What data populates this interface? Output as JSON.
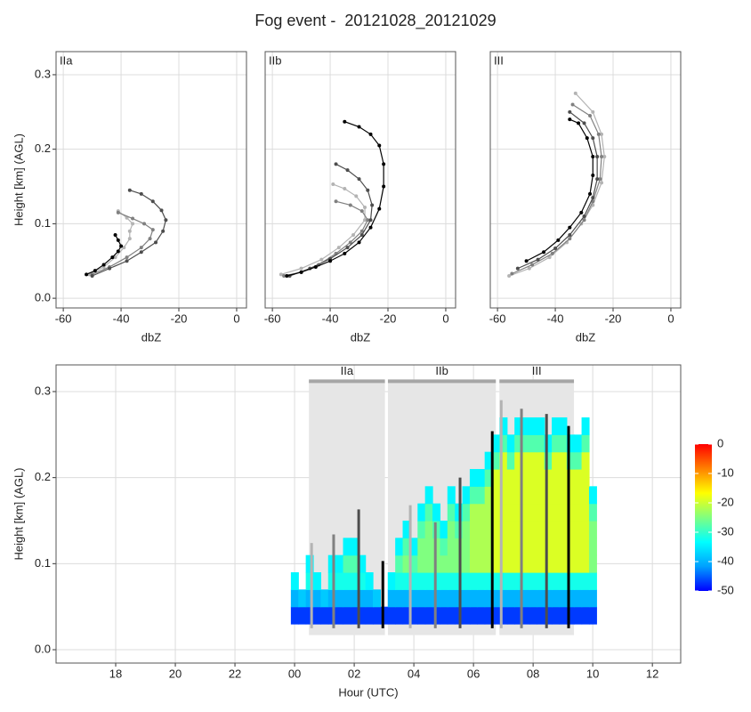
{
  "title": "Fog event -  20121028_20121029",
  "chart_data": [
    {
      "type": "line",
      "xlabel": "dbZ",
      "ylabel": "Height [km] (AGL)",
      "xlim": [
        -62.5,
        3.4
      ],
      "ylim": [
        -0.013,
        0.331
      ],
      "xticks": [
        -60,
        -40,
        -20,
        0
      ],
      "yticks": [
        {
          "value": 0,
          "label": "0.0"
        },
        0.1,
        0.2,
        0.3
      ],
      "grid": true,
      "facets": [
        {
          "label": "IIa",
          "series": [
            {
              "color": "#b3b3b3",
              "x": [
                -51,
                -46,
                -42,
                -39,
                -37,
                -37,
                -36,
                -38,
                -41
              ],
              "values": [
                0.032,
                0.042,
                0.055,
                0.068,
                0.08,
                0.09,
                0.1,
                0.108,
                0.117
              ]
            },
            {
              "color": "#808080",
              "x": [
                -50,
                -44,
                -38,
                -33,
                -30,
                -29,
                -32,
                -36,
                -41
              ],
              "values": [
                0.032,
                0.042,
                0.055,
                0.068,
                0.08,
                0.092,
                0.1,
                0.107,
                0.115
              ]
            },
            {
              "color": "#4d4d4d",
              "x": [
                -50,
                -44,
                -38,
                -33,
                -28,
                -25.5,
                -24.5,
                -26,
                -29,
                -33,
                -37
              ],
              "values": [
                0.03,
                0.04,
                0.05,
                0.062,
                0.075,
                0.09,
                0.105,
                0.118,
                0.13,
                0.14,
                0.145
              ]
            },
            {
              "color": "#000000",
              "x": [
                -52,
                -49,
                -46,
                -43,
                -41,
                -40,
                -41,
                -42
              ],
              "values": [
                0.032,
                0.037,
                0.045,
                0.055,
                0.063,
                0.07,
                0.078,
                0.085
              ]
            }
          ]
        },
        {
          "label": "IIb",
          "series": [
            {
              "color": "#b3b3b3",
              "x": [
                -57,
                -50,
                -43,
                -37,
                -32,
                -28,
                -28,
                -31,
                -35,
                -39
              ],
              "values": [
                0.032,
                0.04,
                0.052,
                0.068,
                0.085,
                0.105,
                0.122,
                0.137,
                0.147,
                0.153
              ]
            },
            {
              "color": "#808080",
              "x": [
                -56,
                -50,
                -44,
                -38,
                -33,
                -29,
                -27,
                -29,
                -33,
                -38
              ],
              "values": [
                0.03,
                0.035,
                0.045,
                0.06,
                0.075,
                0.09,
                0.105,
                0.117,
                0.125,
                0.13
              ]
            },
            {
              "color": "#4d4d4d",
              "x": [
                -54,
                -47,
                -40,
                -34,
                -29,
                -26,
                -25.5,
                -27,
                -30,
                -34,
                -38
              ],
              "values": [
                0.03,
                0.04,
                0.053,
                0.068,
                0.085,
                0.105,
                0.125,
                0.145,
                0.16,
                0.172,
                0.18
              ]
            },
            {
              "color": "#000000",
              "x": [
                -55,
                -50,
                -45,
                -40,
                -35,
                -30,
                -26,
                -23,
                -21.5,
                -21.5,
                -23,
                -26,
                -30,
                -35
              ],
              "values": [
                0.03,
                0.035,
                0.042,
                0.05,
                0.06,
                0.075,
                0.095,
                0.12,
                0.15,
                0.18,
                0.205,
                0.22,
                0.23,
                0.237
              ]
            }
          ]
        },
        {
          "label": "III",
          "series": [
            {
              "color": "#b3b3b3",
              "x": [
                -56,
                -49,
                -42,
                -36,
                -31,
                -27,
                -24,
                -23,
                -24,
                -27,
                -33
              ],
              "values": [
                0.03,
                0.04,
                0.055,
                0.075,
                0.1,
                0.125,
                0.155,
                0.19,
                0.22,
                0.25,
                0.275
              ]
            },
            {
              "color": "#808080",
              "x": [
                -55,
                -48,
                -41,
                -35,
                -30,
                -27,
                -24.5,
                -24,
                -25,
                -28,
                -34
              ],
              "values": [
                0.033,
                0.045,
                0.06,
                0.08,
                0.105,
                0.13,
                0.16,
                0.19,
                0.22,
                0.245,
                0.26
              ]
            },
            {
              "color": "#4d4d4d",
              "x": [
                -53,
                -46,
                -40,
                -35,
                -30,
                -27,
                -25.5,
                -25.5,
                -27,
                -30,
                -35
              ],
              "values": [
                0.04,
                0.052,
                0.067,
                0.085,
                0.11,
                0.135,
                0.16,
                0.19,
                0.215,
                0.235,
                0.25
              ]
            },
            {
              "color": "#000000",
              "x": [
                -50,
                -44,
                -39,
                -35,
                -31,
                -28,
                -27,
                -27,
                -29,
                -32,
                -35
              ],
              "values": [
                0.05,
                0.062,
                0.078,
                0.095,
                0.115,
                0.14,
                0.165,
                0.19,
                0.215,
                0.235,
                0.24
              ]
            }
          ]
        }
      ]
    },
    {
      "type": "heatmap",
      "xlabel": "Hour (UTC)",
      "ylabel": "Height [km] (AGL)",
      "xlim": [
        16,
        36.95
      ],
      "ylim": [
        -0.0155,
        0.331
      ],
      "xticks": [
        18,
        20,
        22,
        {
          "value": 24,
          "label": "00"
        },
        {
          "value": 26,
          "label": "02"
        },
        {
          "value": 28,
          "label": "04"
        },
        {
          "value": 30,
          "label": "06"
        },
        {
          "value": 32,
          "label": "08"
        },
        {
          "value": 34,
          "label": "10"
        },
        {
          "value": 36,
          "label": "12"
        }
      ],
      "yticks": [
        {
          "value": 0,
          "label": "0.0"
        },
        0.1,
        0.2,
        0.3
      ],
      "grid": true,
      "x": [
        24,
        24.25,
        24.5,
        24.75,
        25,
        25.25,
        25.5,
        25.75,
        26,
        26.25,
        26.5,
        26.75,
        27,
        27.25,
        27.5,
        27.75,
        28,
        28.25,
        28.5,
        28.75,
        29,
        29.25,
        29.5,
        29.75,
        30,
        30.25,
        30.5,
        30.75,
        31,
        31.25,
        31.5,
        31.75,
        32,
        32.25,
        32.5,
        32.75,
        33,
        33.25,
        33.5,
        33.75,
        34
      ],
      "y": [
        0.04,
        0.06,
        0.08,
        0.1,
        0.12,
        0.14,
        0.16,
        0.18,
        0.2,
        0.22,
        0.24,
        0.26
      ],
      "z": [
        [
          -47,
          -47,
          -47,
          -47,
          -47,
          -47,
          -47,
          -47,
          -47,
          -47,
          -47,
          -47,
          -47,
          -47,
          -47,
          -47,
          -47,
          -47,
          -47,
          -47,
          -47,
          -47,
          -47,
          -47,
          -47,
          -47,
          -47,
          -47,
          -47,
          -47,
          -47,
          -47,
          -47,
          -47,
          -47,
          -47,
          -47,
          -47,
          -47,
          -47,
          -47
        ],
        [
          -40,
          -38,
          -40,
          -40,
          -38,
          -40,
          -40,
          -40,
          -40,
          -40,
          -40,
          -38,
          null,
          -40,
          -40,
          -40,
          -40,
          -40,
          -40,
          -40,
          -40,
          -40,
          -40,
          -40,
          -40,
          -40,
          -40,
          -40,
          -40,
          -40,
          -40,
          -40,
          -40,
          -40,
          -40,
          -40,
          -40,
          -40,
          -40,
          -40,
          -40
        ],
        [
          -34,
          null,
          -32,
          -34,
          null,
          -32,
          -32,
          -32,
          -32,
          -32,
          -34,
          null,
          null,
          -34,
          -32,
          -32,
          -32,
          -32,
          -32,
          -32,
          -32,
          -32,
          -32,
          -32,
          -32,
          -32,
          -32,
          -32,
          -32,
          -32,
          -32,
          -32,
          -32,
          -32,
          -32,
          -32,
          -32,
          -32,
          -32,
          -32,
          -32
        ],
        [
          null,
          null,
          -34,
          null,
          null,
          -34,
          -34,
          -28,
          -28,
          -34,
          null,
          null,
          null,
          null,
          -28,
          -25,
          -28,
          -25,
          -25,
          -25,
          -25,
          -25,
          -25,
          -25,
          -22,
          -22,
          -22,
          -19,
          -19,
          -19,
          -19,
          -19,
          -19,
          -19,
          -19,
          -19,
          -19,
          -19,
          -19,
          -19,
          -25
        ],
        [
          null,
          null,
          null,
          null,
          null,
          null,
          null,
          -34,
          -34,
          null,
          null,
          null,
          null,
          null,
          -34,
          -28,
          -34,
          -25,
          -25,
          -25,
          -28,
          -25,
          -25,
          -25,
          -22,
          -22,
          -22,
          -19,
          -19,
          -19,
          -19,
          -19,
          -19,
          -19,
          -19,
          -19,
          -19,
          -19,
          -19,
          -19,
          -25
        ],
        [
          null,
          null,
          null,
          null,
          null,
          null,
          null,
          null,
          null,
          null,
          null,
          null,
          null,
          null,
          null,
          -34,
          null,
          -28,
          -25,
          -28,
          -34,
          -25,
          -28,
          -25,
          -22,
          -22,
          -22,
          -19,
          -19,
          -19,
          -19,
          -19,
          -19,
          -19,
          -19,
          -19,
          -19,
          -19,
          -19,
          -19,
          -25
        ],
        [
          null,
          null,
          null,
          null,
          null,
          null,
          null,
          null,
          null,
          null,
          null,
          null,
          null,
          null,
          null,
          null,
          null,
          -34,
          -28,
          -34,
          null,
          -28,
          -34,
          -28,
          -22,
          -22,
          -22,
          -19,
          -19,
          -19,
          -19,
          -19,
          -19,
          -19,
          -19,
          -19,
          -19,
          -19,
          -19,
          -19,
          -28
        ],
        [
          null,
          null,
          null,
          null,
          null,
          null,
          null,
          null,
          null,
          null,
          null,
          null,
          null,
          null,
          null,
          null,
          null,
          null,
          -34,
          null,
          null,
          -34,
          null,
          -34,
          -28,
          -28,
          -22,
          -19,
          -19,
          -19,
          -19,
          -19,
          -19,
          -19,
          -19,
          -19,
          -19,
          -19,
          -19,
          -19,
          -34
        ],
        [
          null,
          null,
          null,
          null,
          null,
          null,
          null,
          null,
          null,
          null,
          null,
          null,
          null,
          null,
          null,
          null,
          null,
          null,
          null,
          null,
          null,
          null,
          null,
          null,
          -34,
          -34,
          -28,
          -19,
          -19,
          -19,
          -19,
          -19,
          -19,
          -19,
          -19,
          -19,
          -19,
          -19,
          -19,
          -19,
          null
        ],
        [
          null,
          null,
          null,
          null,
          null,
          null,
          null,
          null,
          null,
          null,
          null,
          null,
          null,
          null,
          null,
          null,
          null,
          null,
          null,
          null,
          null,
          null,
          null,
          null,
          null,
          null,
          -34,
          -28,
          -19,
          -28,
          -19,
          -19,
          -19,
          -19,
          -28,
          -19,
          -19,
          -28,
          -28,
          -19,
          null
        ],
        [
          null,
          null,
          null,
          null,
          null,
          null,
          null,
          null,
          null,
          null,
          null,
          null,
          null,
          null,
          null,
          null,
          null,
          null,
          null,
          null,
          null,
          null,
          null,
          null,
          null,
          null,
          null,
          -34,
          -28,
          -34,
          -28,
          -28,
          -28,
          -28,
          -34,
          -28,
          -28,
          -34,
          -34,
          -28,
          null
        ],
        [
          null,
          null,
          null,
          null,
          null,
          null,
          null,
          null,
          null,
          null,
          null,
          null,
          null,
          null,
          null,
          null,
          null,
          null,
          null,
          null,
          null,
          null,
          null,
          null,
          null,
          null,
          null,
          null,
          -34,
          null,
          -34,
          -34,
          -34,
          -34,
          null,
          -34,
          -34,
          null,
          null,
          -34,
          null
        ]
      ],
      "zlim": [
        -50,
        0
      ],
      "colors": [
        "#0000ff",
        "#00a0ff",
        "#00ffff",
        "#80ff80",
        "#ffff00",
        "#ff8000",
        "#ff0000"
      ],
      "colorbar_ticks": [
        0,
        -10,
        -20,
        -30,
        -40,
        -50
      ],
      "phase_shade": [
        0.017,
        0.312
      ],
      "phases": [
        {
          "label": "IIa",
          "start": 24.48,
          "end": 27.03
        },
        {
          "label": "IIb",
          "start": 27.13,
          "end": 30.75
        },
        {
          "label": "III",
          "start": 30.87,
          "end": 33.37
        }
      ],
      "profile_bottom": 0.025,
      "profile_lines": [
        {
          "color": "#b3b3b3",
          "x": 24.57,
          "top": 0.124
        },
        {
          "color": "#808080",
          "x": 25.31,
          "top": 0.134
        },
        {
          "color": "#4d4d4d",
          "x": 26.15,
          "top": 0.163
        },
        {
          "color": "#000000",
          "x": 26.96,
          "top": 0.103
        },
        {
          "color": "#b3b3b3",
          "x": 27.88,
          "top": 0.168
        },
        {
          "color": "#808080",
          "x": 28.72,
          "top": 0.148
        },
        {
          "color": "#4d4d4d",
          "x": 29.55,
          "top": 0.2
        },
        {
          "color": "#000000",
          "x": 30.63,
          "top": 0.254
        },
        {
          "color": "#b3b3b3",
          "x": 30.93,
          "top": 0.29
        },
        {
          "color": "#808080",
          "x": 31.61,
          "top": 0.28
        },
        {
          "color": "#4d4d4d",
          "x": 32.45,
          "top": 0.274
        },
        {
          "color": "#000000",
          "x": 33.19,
          "top": 0.26
        }
      ]
    }
  ]
}
